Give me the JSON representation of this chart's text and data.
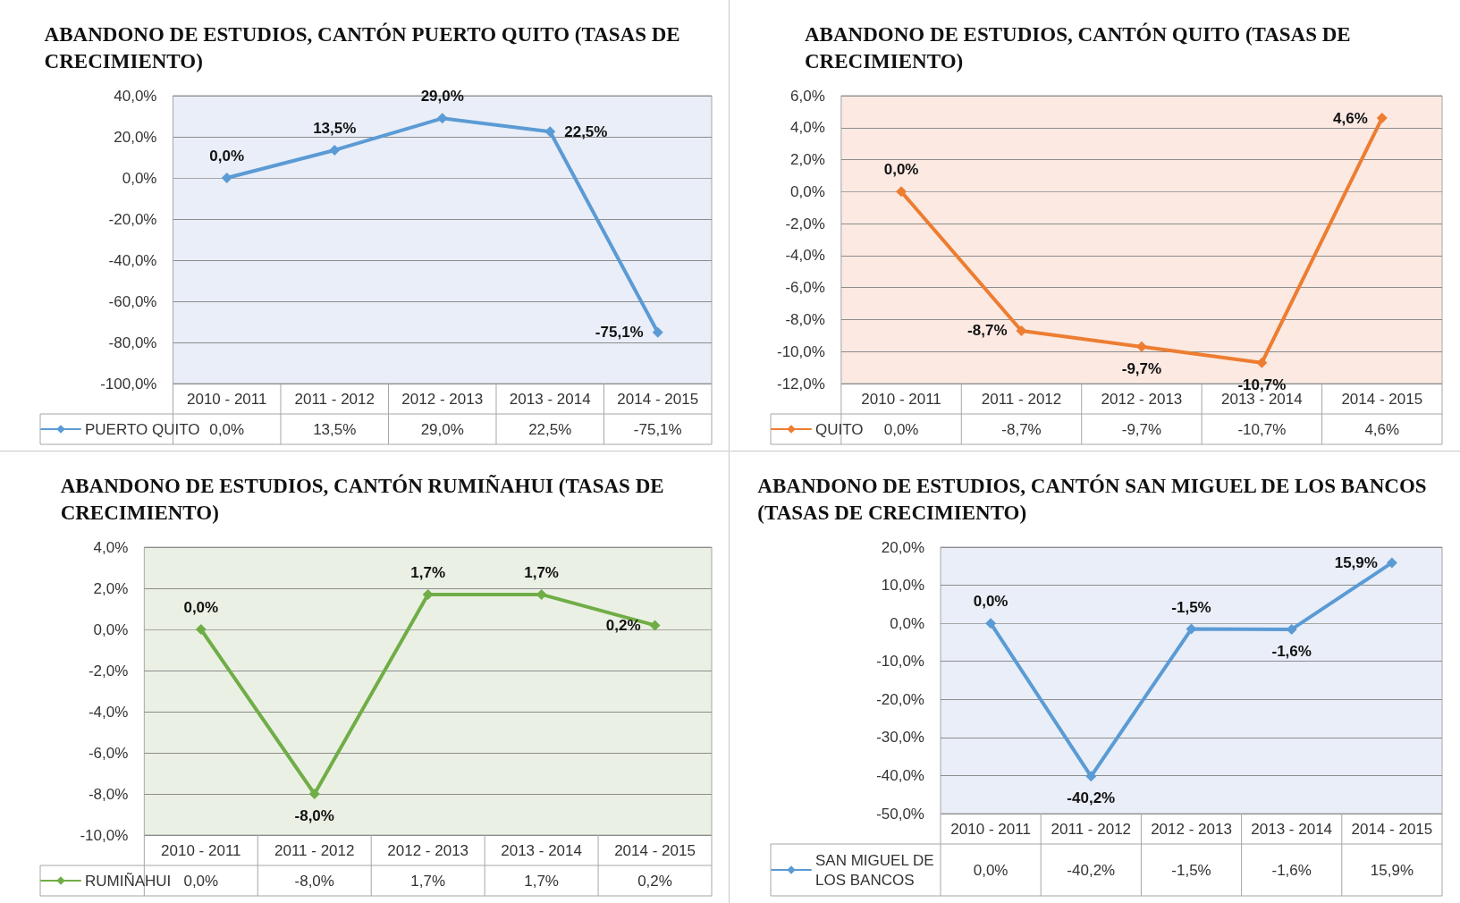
{
  "chart_data": [
    {
      "type": "line",
      "title": "ABANDONO DE ESTUDIOS, CANTÓN PUERTO QUITO (TASAS DE CRECIMIENTO)",
      "categories": [
        "2010 - 2011",
        "2011 - 2012",
        "2012 - 2013",
        "2013 - 2014",
        "2014 - 2015"
      ],
      "series": [
        {
          "name": "PUERTO QUITO",
          "color": "#5b9bd5",
          "values": [
            0.0,
            13.5,
            29.0,
            22.5,
            -75.1
          ],
          "value_labels": [
            "0,0%",
            "13,5%",
            "29,0%",
            "22,5%",
            "-75,1%"
          ]
        }
      ],
      "ylim": [
        -100,
        40
      ],
      "yticks": [
        {
          "value": -100,
          "label": "-100,0%"
        },
        {
          "value": -80,
          "label": "-80,0%"
        },
        {
          "value": -60,
          "label": "-60,0%"
        },
        {
          "value": -40,
          "label": "-40,0%"
        },
        {
          "value": -20,
          "label": "-20,0%"
        },
        {
          "value": 0,
          "label": "0,0%"
        },
        {
          "value": 20,
          "label": "20,0%"
        },
        {
          "value": 40,
          "label": "40,0%"
        }
      ],
      "grid": "y",
      "legend": "bottom left",
      "marker": "diamond",
      "line_style": "solid"
    },
    {
      "type": "line",
      "title": "ABANDONO DE ESTUDIOS, CANTÓN QUITO (TASAS DE CRECIMIENTO)",
      "categories": [
        "2010 - 2011",
        "2011 - 2012",
        "2012 - 2013",
        "2013 - 2014",
        "2014 - 2015"
      ],
      "series": [
        {
          "name": "QUITO",
          "color": "#ed7d31",
          "values": [
            0.0,
            -8.7,
            -9.7,
            -10.7,
            4.6
          ],
          "value_labels": [
            "0,0%",
            "-8,7%",
            "-9,7%",
            "-10,7%",
            "4,6%"
          ]
        }
      ],
      "ylim": [
        -12,
        6
      ],
      "yticks": [
        {
          "value": -12,
          "label": "-12,0%"
        },
        {
          "value": -10,
          "label": "-10,0%"
        },
        {
          "value": -8,
          "label": "-8,0%"
        },
        {
          "value": -6,
          "label": "-6,0%"
        },
        {
          "value": -4,
          "label": "-4,0%"
        },
        {
          "value": -2,
          "label": "-2,0%"
        },
        {
          "value": 0,
          "label": "0,0%"
        },
        {
          "value": 2,
          "label": "2,0%"
        },
        {
          "value": 4,
          "label": "4,0%"
        },
        {
          "value": 6,
          "label": "6,0%"
        }
      ],
      "grid": "y",
      "legend": "bottom left",
      "marker": "diamond",
      "line_style": "solid"
    },
    {
      "type": "line",
      "title": "ABANDONO DE ESTUDIOS, CANTÓN RUMIÑAHUI (TASAS DE CRECIMIENTO)",
      "categories": [
        "2010 - 2011",
        "2011 - 2012",
        "2012 - 2013",
        "2013 - 2014",
        "2014 - 2015"
      ],
      "series": [
        {
          "name": "RUMIÑAHUI",
          "color": "#70ad47",
          "values": [
            0.0,
            -8.0,
            1.7,
            1.7,
            0.2
          ],
          "value_labels": [
            "0,0%",
            "-8,0%",
            "1,7%",
            "1,7%",
            "0,2%"
          ]
        }
      ],
      "ylim": [
        -10,
        4
      ],
      "yticks": [
        {
          "value": -10,
          "label": "-10,0%"
        },
        {
          "value": -8,
          "label": "-8,0%"
        },
        {
          "value": -6,
          "label": "-6,0%"
        },
        {
          "value": -4,
          "label": "-4,0%"
        },
        {
          "value": -2,
          "label": "-2,0%"
        },
        {
          "value": 0,
          "label": "0,0%"
        },
        {
          "value": 2,
          "label": "2,0%"
        },
        {
          "value": 4,
          "label": "4,0%"
        }
      ],
      "grid": "y",
      "legend": "bottom left",
      "marker": "diamond",
      "line_style": "solid"
    },
    {
      "type": "line",
      "title": "ABANDONO DE ESTUDIOS, CANTÓN SAN MIGUEL DE LOS BANCOS (TASAS DE CRECIMIENTO)",
      "categories": [
        "2010 - 2011",
        "2011 - 2012",
        "2012 - 2013",
        "2013 - 2014",
        "2014 - 2015"
      ],
      "series": [
        {
          "name": "SAN MIGUEL DE LOS BANCOS",
          "color": "#5b9bd5",
          "values": [
            0.0,
            -40.2,
            -1.5,
            -1.6,
            15.9
          ],
          "value_labels": [
            "0,0%",
            "-40,2%",
            "-1,5%",
            "-1,6%",
            "15,9%"
          ]
        }
      ],
      "ylim": [
        -50,
        20
      ],
      "yticks": [
        {
          "value": -50,
          "label": "-50,0%"
        },
        {
          "value": -40,
          "label": "-40,0%"
        },
        {
          "value": -30,
          "label": "-30,0%"
        },
        {
          "value": -20,
          "label": "-20,0%"
        },
        {
          "value": -10,
          "label": "-10,0%"
        },
        {
          "value": 0,
          "label": "0,0%"
        },
        {
          "value": 10,
          "label": "10,0%"
        },
        {
          "value": 20,
          "label": "20,0%"
        }
      ],
      "grid": "y",
      "legend": "bottom left",
      "marker": "diamond",
      "line_style": "solid"
    }
  ]
}
